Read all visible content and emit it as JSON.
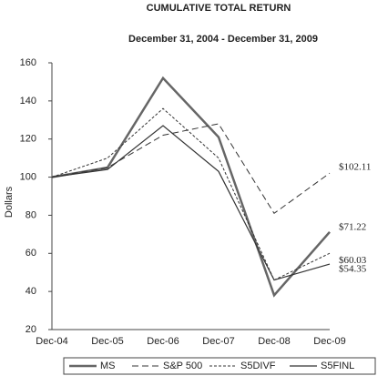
{
  "chart_data": {
    "type": "line",
    "title": "CUMULATIVE TOTAL RETURN",
    "subtitle": "December 31, 2004 - December 31, 2009",
    "y_label": "Dollars",
    "categories": [
      "Dec-04",
      "Dec-05",
      "Dec-06",
      "Dec-07",
      "Dec-08",
      "Dec-09"
    ],
    "series": [
      {
        "name": "MS",
        "color": "#666666",
        "width": 2.5,
        "dash": "none",
        "values": [
          100,
          105,
          152,
          121,
          38,
          71.22
        ],
        "value_labels": [
          null,
          null,
          null,
          null,
          null,
          "$71.22"
        ]
      },
      {
        "name": "S&P 500",
        "color": "#333333",
        "width": 1,
        "dash": "7,4",
        "values": [
          100,
          105,
          122,
          128,
          81,
          102.11
        ],
        "value_labels": [
          null,
          null,
          null,
          null,
          null,
          "$102.11"
        ]
      },
      {
        "name": "S5DIVF",
        "color": "#333333",
        "width": 1,
        "dash": "3,2",
        "values": [
          100,
          110,
          136,
          110,
          46,
          60.03
        ],
        "value_labels": [
          null,
          null,
          null,
          null,
          null,
          "$60.03"
        ]
      },
      {
        "name": "S5FINL",
        "color": "#333333",
        "width": 1.2,
        "dash": "none",
        "values": [
          100,
          104,
          127,
          103,
          46,
          54.35
        ],
        "value_labels": [
          null,
          null,
          null,
          null,
          null,
          "$54.35"
        ]
      }
    ],
    "ylim": [
      20,
      160
    ],
    "yticks": [
      20,
      40,
      60,
      80,
      100,
      120,
      140,
      160
    ]
  }
}
